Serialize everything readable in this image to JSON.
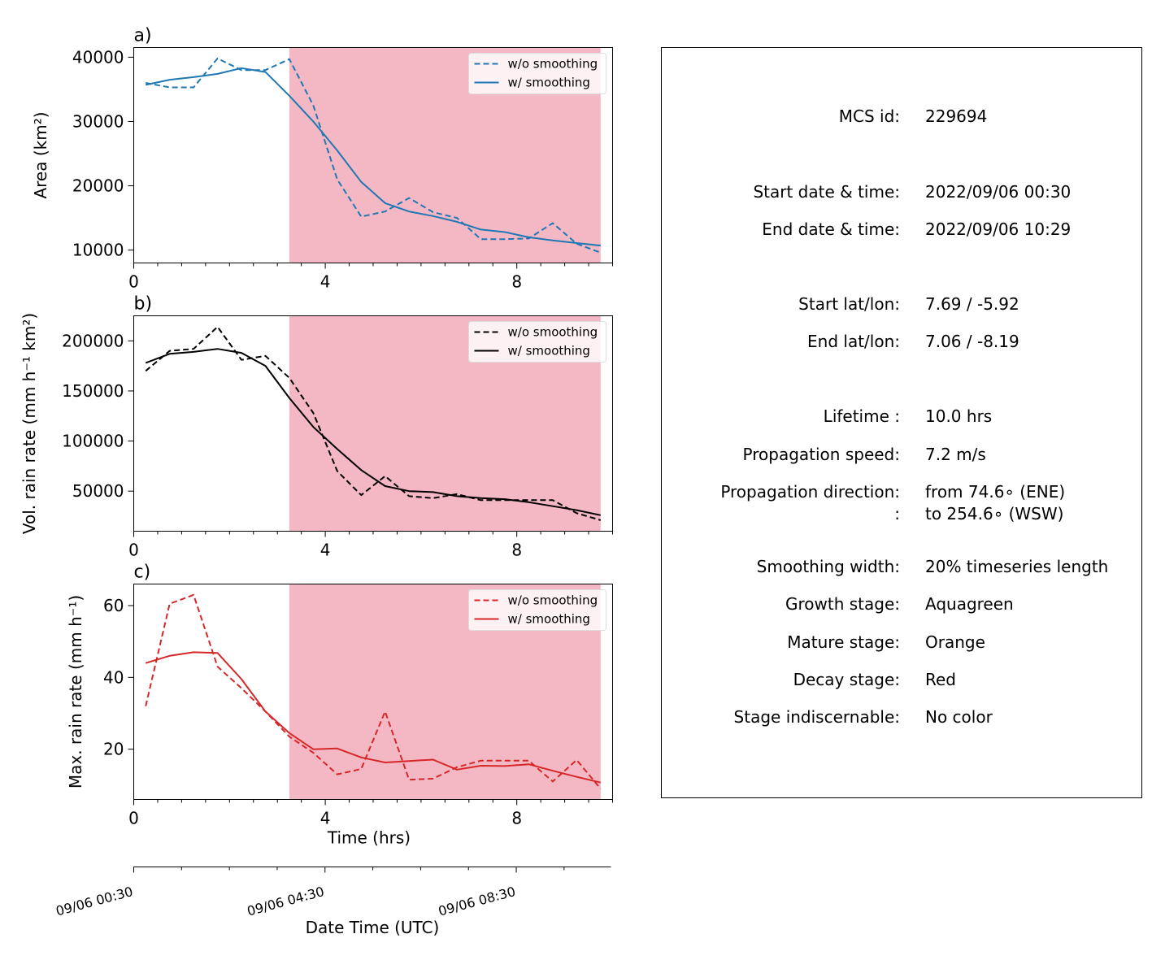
{
  "colors": {
    "shade": "#f4b8c5",
    "blue": "#1f77b4",
    "black": "#000000",
    "red": "#d62728"
  },
  "chart_data": [
    {
      "type": "line",
      "panel_label": "a)",
      "ylabel": "Area  (km²)",
      "x_ticks": [
        0,
        4,
        8
      ],
      "xlim": [
        0,
        10
      ],
      "ylim": [
        8000,
        41500
      ],
      "y_ticks": [
        10000,
        20000,
        30000,
        40000
      ],
      "shaded_x": [
        3.25,
        9.75
      ],
      "legend_position": "top-right",
      "x": [
        0.25,
        0.75,
        1.25,
        1.75,
        2.25,
        2.75,
        3.25,
        3.75,
        4.25,
        4.75,
        5.25,
        5.75,
        6.25,
        6.75,
        7.25,
        7.75,
        8.25,
        8.75,
        9.25,
        9.75
      ],
      "series": [
        {
          "name": "w/o smoothing",
          "dash": true,
          "color": "#1f77b4",
          "values": [
            36000,
            35300,
            35300,
            39800,
            38000,
            38000,
            39700,
            32500,
            21000,
            15200,
            16000,
            18100,
            15900,
            15000,
            11700,
            11700,
            11800,
            14200,
            11000,
            9600
          ]
        },
        {
          "name": "w/ smoothing",
          "dash": false,
          "color": "#1f77b4",
          "values": [
            35700,
            36500,
            36900,
            37400,
            38300,
            37700,
            34000,
            30000,
            25500,
            20600,
            17300,
            16000,
            15300,
            14400,
            13200,
            12800,
            12000,
            11500,
            11100,
            10700
          ]
        }
      ]
    },
    {
      "type": "line",
      "panel_label": "b)",
      "ylabel": "Vol. rain rate (mm h⁻¹ km²)",
      "x_ticks": [
        0,
        4,
        8
      ],
      "xlim": [
        0,
        10
      ],
      "ylim": [
        10000,
        225000
      ],
      "y_ticks": [
        50000,
        100000,
        150000,
        200000
      ],
      "shaded_x": [
        3.25,
        9.75
      ],
      "legend_position": "top-right",
      "x": [
        0.25,
        0.75,
        1.25,
        1.75,
        2.25,
        2.75,
        3.25,
        3.75,
        4.25,
        4.75,
        5.25,
        5.75,
        6.25,
        6.75,
        7.25,
        7.75,
        8.25,
        8.75,
        9.25,
        9.75
      ],
      "series": [
        {
          "name": "w/o smoothing",
          "dash": true,
          "color": "#000000",
          "values": [
            170000,
            190000,
            192000,
            214000,
            181000,
            185000,
            163000,
            128000,
            70000,
            46000,
            65000,
            45000,
            43000,
            47000,
            41000,
            41000,
            41000,
            41000,
            28000,
            21000
          ]
        },
        {
          "name": "w/ smoothing",
          "dash": false,
          "color": "#000000",
          "values": [
            178000,
            187000,
            189000,
            192000,
            188000,
            175000,
            143000,
            114000,
            92000,
            71000,
            55000,
            50000,
            49000,
            45000,
            43000,
            42000,
            39000,
            35000,
            31000,
            26000
          ]
        }
      ]
    },
    {
      "type": "line",
      "panel_label": "c)",
      "ylabel": "Max. rain rate  (mm h⁻¹)",
      "xlabel": "Time (hrs)",
      "x_ticks": [
        0,
        4,
        8
      ],
      "xlim": [
        0,
        10
      ],
      "ylim": [
        6,
        66
      ],
      "y_ticks": [
        20,
        40,
        60
      ],
      "shaded_x": [
        3.25,
        9.75
      ],
      "legend_position": "top-right",
      "x": [
        0.25,
        0.75,
        1.25,
        1.75,
        2.25,
        2.75,
        3.25,
        3.75,
        4.25,
        4.75,
        5.25,
        5.75,
        6.25,
        6.75,
        7.25,
        7.75,
        8.25,
        8.75,
        9.25,
        9.75
      ],
      "series": [
        {
          "name": "w/o smoothing",
          "dash": true,
          "color": "#d62728",
          "values": [
            32,
            60.5,
            63,
            43,
            37,
            30.5,
            23.5,
            19,
            13,
            14.5,
            30.5,
            11.5,
            11.8,
            15,
            16.8,
            16.8,
            16.8,
            11,
            17,
            9
          ]
        },
        {
          "name": "w/ smoothing",
          "dash": false,
          "color": "#d62728",
          "values": [
            44,
            46,
            47,
            46.8,
            39.5,
            30.5,
            24.5,
            20,
            20.2,
            17.7,
            16.3,
            16.7,
            17.1,
            14.3,
            15.4,
            15.3,
            15.8,
            14,
            12.3,
            10.7
          ]
        }
      ]
    }
  ],
  "secondary_axis": {
    "label": "Date Time (UTC)",
    "tick_labels": [
      "09/06 00:30",
      "09/06 04:30",
      "09/06 08:30"
    ],
    "tick_hours": [
      0,
      4,
      8
    ]
  },
  "info": {
    "rows": [
      {
        "k": "MCS id:",
        "v": "229694"
      },
      {
        "k": "Start date & time:",
        "v": "2022/09/06 00:30"
      },
      {
        "k": "End date & time:",
        "v": "2022/09/06 10:29"
      },
      {
        "k": "Start lat/lon:",
        "v": "7.69 / -5.92"
      },
      {
        "k": "End lat/lon:",
        "v": "7.06 / -8.19"
      },
      {
        "k": "Lifetime :",
        "v": "10.0 hrs"
      },
      {
        "k": "Propagation speed:",
        "v": "7.2 m/s"
      },
      {
        "k": "Propagation direction:",
        "v": "from  74.6∘ (ENE)"
      },
      {
        "k": ":",
        "v": "to   254.6∘ (WSW)"
      },
      {
        "k": "Smoothing width:",
        "v": "20% timeseries length"
      },
      {
        "k": "Growth stage:",
        "v": "Aquagreen"
      },
      {
        "k": "Mature stage:",
        "v": "Orange"
      },
      {
        "k": "Decay stage:",
        "v": "Red"
      },
      {
        "k": "Stage indiscernable:",
        "v": "No color"
      }
    ]
  }
}
